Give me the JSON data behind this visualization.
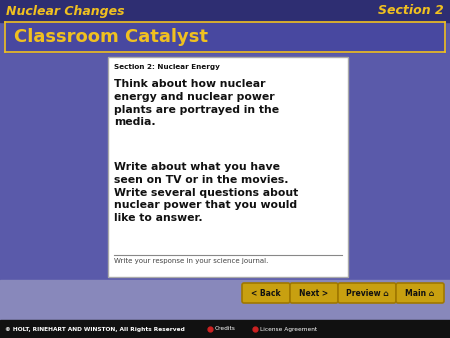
{
  "bg_color": "#5a5aaa",
  "header_bar_color": "#2e2e72",
  "header_text_left": "Nuclear Changes",
  "header_text_right": "Section 2",
  "header_color": "#f0c020",
  "title_bar_color": "#4848a0",
  "title_bar_border": "#f0c020",
  "title_text": "Classroom Catalyst",
  "title_color": "#f0c020",
  "card_label": "Section 2: Nuclear Energy",
  "card_body1": "Think about how nuclear\nenergy and nuclear power\nplants are portrayed in the\nmedia.",
  "card_body2": "Write about what you have\nseen on TV or in the movies.\nWrite several questions about\nnuclear power that you would\nlike to answer.",
  "card_footer": "Write your response in your science journal.",
  "card_bg": "#ffffff",
  "card_border": "#aaaaaa",
  "footer_bg": "#111111",
  "footer_text": "© HOLT, RINEHART AND WINSTON, All Rights Reserved",
  "footer_color": "#ffffff",
  "credits_text": "Credits",
  "license_text": "License Agreement",
  "btn_labels": [
    "< Back",
    "Next >",
    "Preview ⌂",
    "Main ⌂"
  ],
  "btn_color": "#c8a010",
  "btn_border": "#a07800",
  "btn_text_color": "#111111",
  "slide_bg": "#5a5aaa",
  "nav_bg": "#8888c0"
}
